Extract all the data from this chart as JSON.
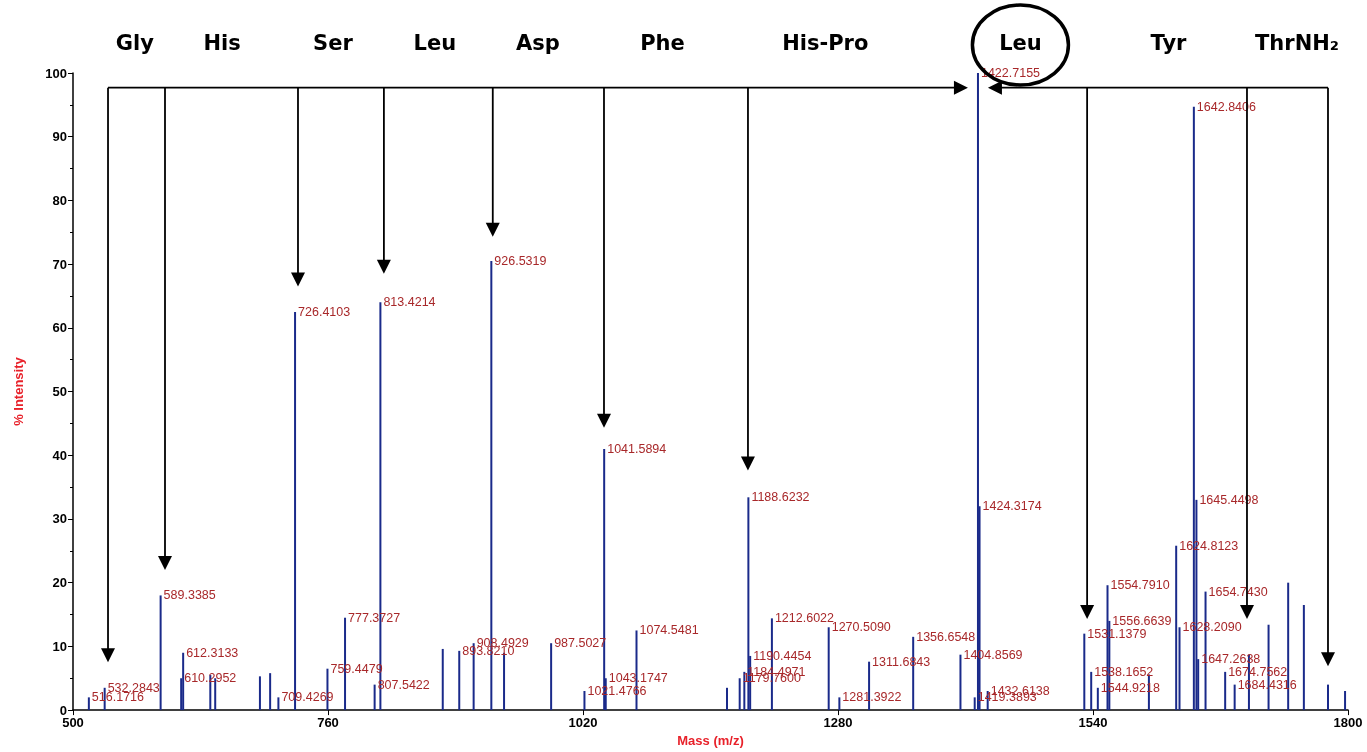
{
  "chart_data": {
    "type": "bar",
    "xlabel": "Mass (m/z)",
    "ylabel": "% Intensity",
    "x": [
      516.1716,
      532.2843,
      589.3385,
      610.2952,
      612.3133,
      640,
      645,
      690.6,
      701,
      709.4269,
      726.4103,
      759.4479,
      777.3727,
      807.5422,
      813.4214,
      877,
      893.821,
      908.4929,
      926.5319,
      939.5,
      987.5027,
      1021.4766,
      1041.5894,
      1043.1747,
      1074.5481,
      1166.8,
      1179.76,
      1184.4971,
      1188.6232,
      1190.4454,
      1212.6022,
      1270.509,
      1281.3922,
      1311.6843,
      1356.6548,
      1404.8569,
      1419.3893,
      1422.7155,
      1424.3174,
      1432.6138,
      1531.1379,
      1538.1652,
      1544.9218,
      1554.791,
      1556.6639,
      1597,
      1624.8123,
      1628.209,
      1642.8406,
      1645.4498,
      1647.2638,
      1654.743,
      1674.7562,
      1684.4316,
      1699,
      1719,
      1739,
      1755,
      1779.6,
      1797
    ],
    "series": [
      {
        "color": "#1a2a8a",
        "values": [
          2,
          3.5,
          18,
          5,
          9,
          5.5,
          5,
          5.3,
          5.8,
          2,
          62.5,
          6.5,
          14.5,
          4,
          64,
          9.6,
          9.3,
          10.5,
          70.5,
          9,
          10.5,
          3,
          41,
          5,
          12.5,
          3.5,
          5,
          6,
          33.4,
          8.5,
          14.4,
          13,
          2,
          7.6,
          11.5,
          8.7,
          2,
          100,
          32,
          3,
          12,
          6,
          3.5,
          19.6,
          14,
          5.6,
          25.8,
          13,
          94.7,
          33,
          8,
          18.6,
          6,
          4,
          8.7,
          13.4,
          20,
          16.5,
          4,
          3
        ]
      }
    ],
    "xlim": [
      500,
      1800
    ],
    "xticks": [
      500,
      760,
      1020,
      1280,
      1540,
      1800
    ],
    "ylim": [
      0,
      100
    ],
    "yticks": [
      0,
      10,
      20,
      30,
      40,
      50,
      60,
      70,
      80,
      90,
      100
    ],
    "grid": false,
    "annotations": [
      "Gly",
      "His",
      "Ser",
      "Leu",
      "Asp",
      "Phe",
      "His-Pro",
      "Leu",
      "Tyr",
      "ThrNH₂",
      {
        "text": "516.1716",
        "x": 516.1716,
        "y": 2
      },
      {
        "text": "532.2843",
        "x": 532.2843,
        "y": 3.5
      },
      {
        "text": "589.3385",
        "x": 589.3385,
        "y": 18
      },
      {
        "text": "610.2952",
        "x": 610.2952,
        "y": 5
      },
      {
        "text": "612.3133",
        "x": 612.3133,
        "y": 9
      },
      {
        "text": "709.4269",
        "x": 709.4269,
        "y": 2
      },
      {
        "text": "726.4103",
        "x": 726.4103,
        "y": 62.5
      },
      {
        "text": "759.4479",
        "x": 759.4479,
        "y": 6.5
      },
      {
        "text": "777.3727",
        "x": 777.3727,
        "y": 14.5
      },
      {
        "text": "807.5422",
        "x": 807.5422,
        "y": 4
      },
      {
        "text": "813.4214",
        "x": 813.4214,
        "y": 64
      },
      {
        "text": "893.8210",
        "x": 893.821,
        "y": 9.3
      },
      {
        "text": "908.4929",
        "x": 908.4929,
        "y": 10.5
      },
      {
        "text": "926.5319",
        "x": 926.5319,
        "y": 70.5
      },
      {
        "text": "987.5027",
        "x": 987.5027,
        "y": 10.5
      },
      {
        "text": "1021.4766",
        "x": 1021.4766,
        "y": 3
      },
      {
        "text": "1041.5894",
        "x": 1041.5894,
        "y": 41
      },
      {
        "text": "1043.1747",
        "x": 1043.1747,
        "y": 5
      },
      {
        "text": "1074.5481",
        "x": 1074.5481,
        "y": 12.5
      },
      {
        "text": "1179.7600",
        "x": 1179.76,
        "y": 5
      },
      {
        "text": "1184.4971",
        "x": 1184.4971,
        "y": 6
      },
      {
        "text": "1188.6232",
        "x": 1188.6232,
        "y": 33.4
      },
      {
        "text": "1190.4454",
        "x": 1190.4454,
        "y": 8.5
      },
      {
        "text": "1212.6022",
        "x": 1212.6022,
        "y": 14.4
      },
      {
        "text": "1270.5090",
        "x": 1270.509,
        "y": 13
      },
      {
        "text": "1281.3922",
        "x": 1281.3922,
        "y": 2
      },
      {
        "text": "1311.6843",
        "x": 1311.6843,
        "y": 7.6
      },
      {
        "text": "1356.6548",
        "x": 1356.6548,
        "y": 11.5
      },
      {
        "text": "1404.8569",
        "x": 1404.8569,
        "y": 8.7
      },
      {
        "text": "1419.3893",
        "x": 1419.3893,
        "y": 2
      },
      {
        "text": "1422.7155",
        "x": 1422.7155,
        "y": 100
      },
      {
        "text": "1424.3174",
        "x": 1424.3174,
        "y": 32
      },
      {
        "text": "1432.6138",
        "x": 1432.6138,
        "y": 3
      },
      {
        "text": "1531.1379",
        "x": 1531.1379,
        "y": 12
      },
      {
        "text": "1538.1652",
        "x": 1538.1652,
        "y": 6
      },
      {
        "text": "1544.9218",
        "x": 1544.9218,
        "y": 3.5
      },
      {
        "text": "1554.7910",
        "x": 1554.791,
        "y": 19.6
      },
      {
        "text": "1556.6639",
        "x": 1556.6639,
        "y": 14
      },
      {
        "text": "1624.8123",
        "x": 1624.8123,
        "y": 25.8
      },
      {
        "text": "1628.2090",
        "x": 1628.209,
        "y": 13
      },
      {
        "text": "1642.8406",
        "x": 1642.8406,
        "y": 94.7
      },
      {
        "text": "1645.4498",
        "x": 1645.4498,
        "y": 33
      },
      {
        "text": "1647.2638",
        "x": 1647.2638,
        "y": 8
      },
      {
        "text": "1654.7430",
        "x": 1654.743,
        "y": 18.6
      },
      {
        "text": "1674.7562",
        "x": 1674.7562,
        "y": 6
      },
      {
        "text": "1684.4316",
        "x": 1684.4316,
        "y": 4
      }
    ]
  }
}
